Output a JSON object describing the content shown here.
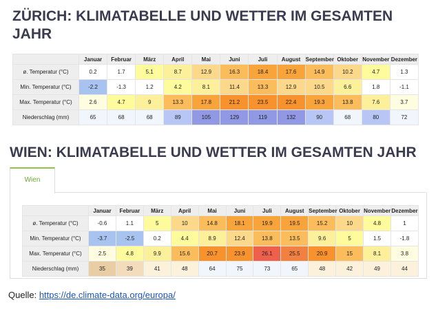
{
  "sections": [
    {
      "title": "ZÜRICH: KLIMATABELLE UND WETTER IM GESAMTEN JAHR",
      "table": {
        "header": [
          "Januar",
          "Februar",
          "März",
          "April",
          "Mai",
          "Juni",
          "Juli",
          "August",
          "September",
          "Oktober",
          "November",
          "Dezember"
        ],
        "rows": [
          {
            "label": "ø. Temperatur (°C)",
            "cells": [
              0.2,
              1.7,
              5.1,
              8.7,
              12.9,
              16.3,
              18.4,
              17.6,
              14.9,
              10.2,
              4.7,
              1.3
            ]
          },
          {
            "label": "Min. Temperatur (°C)",
            "cells": [
              -2.2,
              -1.3,
              1.2,
              4.2,
              8.1,
              11.4,
              13.3,
              12.9,
              10.5,
              6.6,
              1.8,
              -1.1
            ]
          },
          {
            "label": "Max. Temperatur (°C)",
            "cells": [
              2.6,
              4.7,
              9,
              13.3,
              17.8,
              21.2,
              23.5,
              22.4,
              19.3,
              13.8,
              7.6,
              3.7
            ]
          },
          {
            "label": "Niederschlag (mm)",
            "cells": [
              65,
              68,
              68,
              89,
              105,
              129,
              119,
              132,
              90,
              68,
              80,
              72
            ]
          }
        ]
      }
    },
    {
      "title": "WIEN: KLIMATABELLE UND WETTER IM GESAMTEN JAHR",
      "tab": "Wien",
      "table": {
        "header": [
          "Januar",
          "Februar",
          "März",
          "April",
          "Mai",
          "Juni",
          "Juli",
          "August",
          "September",
          "Oktober",
          "November",
          "Dezember"
        ],
        "rows": [
          {
            "label": "ø. Temperatur (°C)",
            "cells": [
              -0.6,
              1.1,
              5,
              10,
              14.8,
              18.1,
              19.9,
              19.5,
              15.2,
              10,
              4.8,
              1
            ]
          },
          {
            "label": "Min. Temperatur (°C)",
            "cells": [
              -3.7,
              -2.5,
              0.2,
              4.4,
              8.9,
              12.4,
              13.8,
              13.5,
              9.6,
              5,
              1.5,
              -1.8
            ]
          },
          {
            "label": "Max. Temperatur (°C)",
            "cells": [
              2.5,
              4.8,
              9.9,
              15.6,
              20.7,
              23.9,
              26.1,
              25.5,
              20.9,
              15,
              8.1,
              3.8
            ]
          },
          {
            "label": "Niederschlag (mm)",
            "cells": [
              35,
              39,
              41,
              48,
              64,
              75,
              73,
              65,
              48,
              42,
              49,
              44
            ]
          }
        ]
      }
    }
  ],
  "source": {
    "label": "Quelle:",
    "link": "https://de.climate-data.org/europa/"
  }
}
